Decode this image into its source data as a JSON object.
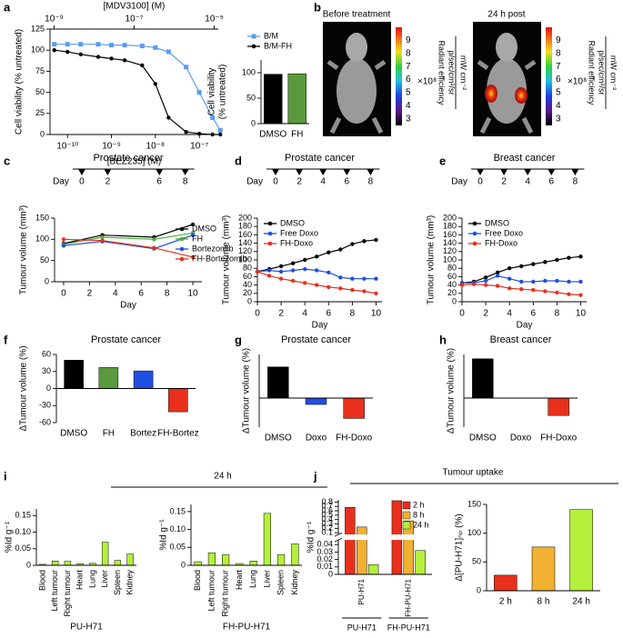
{
  "chart_data": [
    {
      "panel": "a",
      "type": "line",
      "x": [
        5e-11,
        1e-10,
        2e-10,
        5e-10,
        1e-09,
        2e-09,
        5e-09,
        1e-08,
        2e-08,
        5e-08,
        1e-07,
        2e-07,
        3e-07
      ],
      "xlog": true,
      "xlim": [
        4e-11,
        2.7e-07
      ],
      "xticks": [
        {
          "value": 1e-10,
          "label": "10⁻¹⁰"
        },
        {
          "value": 1e-09,
          "label": "10⁻⁹"
        },
        {
          "value": 1e-08,
          "label": "10⁻⁸"
        },
        {
          "value": 1e-07,
          "label": "10⁻⁷"
        }
      ],
      "xlabel": "[BEZ235] (M)",
      "x2lim": [
        7.9e-10,
        1.26e-05
      ],
      "x2ticks": [
        {
          "value": 1e-09,
          "label": "10⁻⁹"
        },
        {
          "value": 1e-07,
          "label": "10⁻⁷"
        },
        {
          "value": 1e-05,
          "label": "10⁻⁵"
        }
      ],
      "x2label": "[MDV3100] (M)",
      "ylabel": "Cell viability (% untreated)",
      "ylim": [
        0,
        125
      ],
      "yticks": [
        0,
        25,
        50,
        75,
        100,
        125
      ],
      "series": [
        {
          "name": "B/M",
          "color": "#5b9bef",
          "marker": "square",
          "values": [
            107,
            107,
            107,
            107,
            106,
            106,
            105,
            103,
            98,
            80,
            50,
            20,
            5
          ]
        },
        {
          "name": "B/M-FH",
          "color": "#000000",
          "marker": "circle",
          "values": [
            100,
            98,
            95,
            92,
            90,
            88,
            82,
            60,
            20,
            3,
            1,
            0,
            0
          ]
        }
      ]
    },
    {
      "type": "bar",
      "categories": [
        "DMSO",
        "FH"
      ],
      "values": [
        97,
        98
      ],
      "colors": [
        "#000000",
        "#5a9a3c"
      ],
      "ylabel": [
        "Cell viability",
        "(% untreated)"
      ],
      "ylim": [
        0,
        125
      ],
      "yticks": [
        0,
        50,
        100
      ]
    },
    {
      "panel": "c",
      "type": "line",
      "title": "Prostate cancer",
      "schedule": {
        "label": "Day",
        "days": [
          0,
          2,
          6,
          8
        ]
      },
      "x": [
        0,
        3,
        7,
        10
      ],
      "xlim": [
        -0.7,
        10.7
      ],
      "xticks": [
        0,
        2,
        4,
        6,
        8,
        10
      ],
      "xlabel": "Day",
      "ylabel": "Tumour volume (mm³)",
      "ylim": [
        0,
        150
      ],
      "yticks": [
        0,
        50,
        100,
        150
      ],
      "series": [
        {
          "name": "DMSO",
          "color": "#000000",
          "values": [
            90,
            110,
            105,
            135
          ]
        },
        {
          "name": "FH",
          "color": "#4caf3c",
          "values": [
            88,
            105,
            100,
            115
          ]
        },
        {
          "name": "Bortezomib",
          "color": "#1f4fe0",
          "values": [
            85,
            95,
            78,
            110
          ]
        },
        {
          "name": "FH-Bortezomib",
          "color": "#e8301c",
          "values": [
            100,
            97,
            80,
            58
          ]
        }
      ]
    },
    {
      "panel": "d",
      "type": "line",
      "title": "Prostate cancer",
      "schedule": {
        "label": "Day",
        "days": [
          0,
          2,
          4,
          6,
          8
        ]
      },
      "x": [
        0,
        1,
        2,
        3,
        4,
        5,
        6,
        7,
        8,
        9,
        10
      ],
      "xlim": [
        0,
        10.5
      ],
      "xticks": [
        0,
        2,
        4,
        6,
        8,
        10
      ],
      "xlabel": "Day",
      "ylabel": "Tumour volume (mm³)",
      "ylim": [
        0,
        200
      ],
      "yticks": [
        0,
        20,
        40,
        60,
        80,
        100,
        120,
        140,
        160,
        180,
        200
      ],
      "series": [
        {
          "name": "DMSO",
          "color": "#000000",
          "values": [
            72,
            78,
            85,
            92,
            100,
            108,
            118,
            125,
            138,
            145,
            148
          ]
        },
        {
          "name": "Free Doxo",
          "color": "#1f4fe0",
          "values": [
            72,
            75,
            72,
            75,
            78,
            75,
            70,
            58,
            55,
            55,
            55
          ]
        },
        {
          "name": "FH-Doxo",
          "color": "#e8301c",
          "values": [
            72,
            62,
            55,
            50,
            45,
            40,
            35,
            32,
            28,
            25,
            20
          ]
        }
      ]
    },
    {
      "panel": "e",
      "type": "line",
      "title": "Breast cancer",
      "schedule": {
        "label": "Day",
        "days": [
          0,
          2,
          4,
          6,
          8
        ]
      },
      "x": [
        0,
        1,
        2,
        3,
        4,
        5,
        6,
        7,
        8,
        9,
        10
      ],
      "xlim": [
        0,
        10.5
      ],
      "xticks": [
        0,
        2,
        4,
        6,
        8,
        10
      ],
      "xlabel": "Day",
      "ylabel": "Tumour volume (mm³)",
      "ylim": [
        0,
        200
      ],
      "yticks": [
        0,
        20,
        40,
        60,
        80,
        100,
        120,
        140,
        160,
        180,
        200
      ],
      "series": [
        {
          "name": "DMSO",
          "color": "#000000",
          "values": [
            45,
            48,
            58,
            70,
            80,
            85,
            90,
            95,
            100,
            105,
            108
          ]
        },
        {
          "name": "Free Doxo",
          "color": "#1f4fe0",
          "values": [
            45,
            45,
            50,
            62,
            55,
            48,
            48,
            50,
            50,
            48,
            48
          ]
        },
        {
          "name": "FH-Doxo",
          "color": "#e8301c",
          "values": [
            40,
            42,
            40,
            38,
            32,
            30,
            28,
            25,
            22,
            18,
            16
          ]
        }
      ]
    },
    {
      "panel": "f",
      "type": "bar",
      "title": "Prostate cancer",
      "categories": [
        "DMSO",
        "FH",
        "Bortez",
        "FH-Bortez"
      ],
      "values": [
        50,
        37,
        31,
        -41
      ],
      "colors": [
        "#000000",
        "#5a9a3c",
        "#1f4fe0",
        "#e8301c"
      ],
      "ylabel": "ΔTumour volume (%)",
      "ylim": [
        -60,
        60
      ],
      "yticks": [
        -60,
        -30,
        0,
        30,
        60
      ]
    },
    {
      "panel": "g",
      "type": "bar",
      "title": "Prostate cancer",
      "categories": [
        "DMSO",
        "Doxo",
        "FH-Doxo"
      ],
      "values": [
        107,
        -22,
        -70
      ],
      "colors": [
        "#000000",
        "#1f4fe0",
        "#e8301c"
      ],
      "ylabel": "ΔTumour volume (%)",
      "ylim": [
        -100,
        150
      ]
    },
    {
      "panel": "h",
      "type": "bar",
      "title": "Breast cancer",
      "categories": [
        "DMSO",
        "Doxo",
        "FH-Doxo"
      ],
      "values": [
        135,
        0,
        -60
      ],
      "colors": [
        "#000000",
        "#1f4fe0",
        "#e8301c"
      ],
      "ylabel": "ΔTumour volume (%)",
      "ylim": [
        -100,
        150
      ]
    },
    {
      "panel": "i",
      "annotation": "24 h",
      "type": "bar",
      "categories": [
        "Blood",
        "Left tumour",
        "Right tumour",
        "Heart",
        "Lung",
        "Liver",
        "Spleen",
        "Kidney"
      ],
      "values": [
        0.003,
        0.013,
        0.012,
        0.005,
        0.006,
        0.07,
        0.015,
        0.034
      ],
      "color": "#b4f03c",
      "xlabel": "PU-H71",
      "ylabel": "%Id g⁻¹",
      "ylim": [
        0,
        0.17
      ],
      "yticks": [
        0,
        0.05,
        {
          "value": 0.1,
          "label": "0.10"
        },
        0.15
      ]
    },
    {
      "type": "bar",
      "categories": [
        "Blood",
        "Left tumour",
        "Right tumour",
        "Heart",
        "Lung",
        "Liver",
        "Spleen",
        "Kidney"
      ],
      "values": [
        0.01,
        0.035,
        0.03,
        0.005,
        0.012,
        0.145,
        0.03,
        0.06
      ],
      "color": "#b4f03c",
      "xlabel": "FH-PU-H71",
      "ylabel": "%Id g⁻¹",
      "ylim": [
        0,
        0.17
      ],
      "yticks": [
        0,
        0.05,
        {
          "value": 0.1,
          "label": "0.10"
        },
        0.15
      ]
    },
    {
      "panel": "j",
      "annotation": "Tumour uptake",
      "type": "grouped_bar",
      "categories": [
        "PU-H71",
        "FH-PU-H71"
      ],
      "series": [
        {
          "name": "2 h",
          "color": "#e8301c",
          "values": [
            0.68,
            0.83
          ]
        },
        {
          "name": "8 h",
          "color": "#f2b133",
          "values": [
            0.23,
            0.37
          ]
        },
        {
          "name": "24 h",
          "color": "#b4f03c",
          "values": [
            0.013,
            0.032
          ]
        }
      ],
      "ylabel": "%Id g⁻¹",
      "ylim": [
        0,
        0.85
      ],
      "ybreak": [
        0.045,
        0.08
      ],
      "yticks": [
        0,
        0.01,
        0.02,
        0.03,
        0.04,
        0.1,
        0.2,
        0.3,
        0.4,
        0.5,
        0.6,
        0.7,
        0.8
      ]
    },
    {
      "type": "bar",
      "categories": [
        "2 h",
        "8 h",
        "24 h"
      ],
      "values": [
        27,
        76,
        141
      ],
      "colors": [
        "#e8301c",
        "#f2b133",
        "#b4f03c"
      ],
      "ylabel": "Δ[PU-H71]ₙₚ (%)",
      "ylim": [
        0,
        150
      ],
      "yticks": [
        0,
        50,
        100,
        150
      ]
    }
  ],
  "panel_b": {
    "panel": "b",
    "images": [
      {
        "caption": "Before treatment"
      },
      {
        "caption": "24 h post"
      }
    ],
    "colorbar_ticks": [
      9,
      8,
      7,
      6,
      5,
      4,
      3
    ],
    "colorbar_scale": "×10⁸",
    "colorbar_label": [
      "Radiant efficiency",
      "p/sec/cm²/sr",
      "mW cm⁻²"
    ]
  }
}
